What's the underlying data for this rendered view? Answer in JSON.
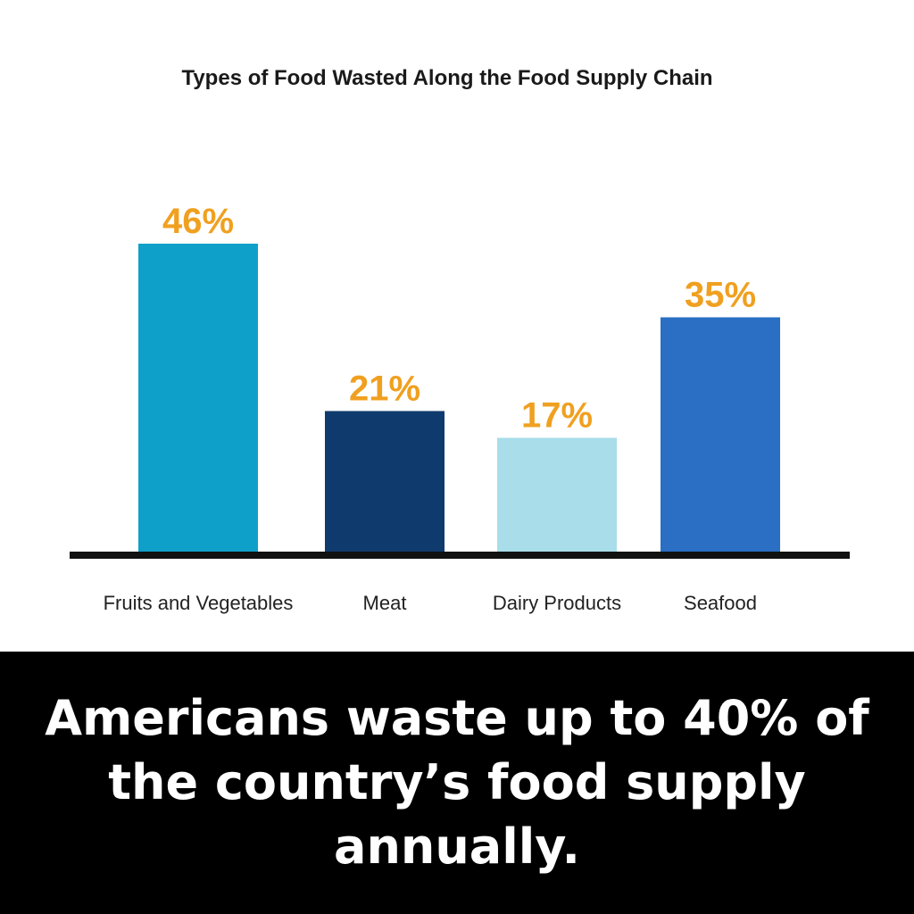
{
  "chart_data": {
    "type": "bar",
    "title": "Types of Food Wasted Along the Food Supply Chain",
    "categories": [
      "Fruits and Vegetables",
      "Meat",
      "Dairy Products",
      "Seafood"
    ],
    "values": [
      46,
      21,
      17,
      35
    ],
    "value_labels": [
      "46%",
      "21%",
      "17%",
      "35%"
    ],
    "bar_colors": [
      "#0ea0c9",
      "#0f3a6e",
      "#a8dde9",
      "#2a6fc4"
    ],
    "value_label_color": "#f0a020",
    "baseline_color": "#111111",
    "ylim": [
      0,
      46
    ],
    "grid": false,
    "legend": "none"
  },
  "caption": {
    "text": "Americans waste up to 40% of the country’s food supply annually.",
    "text_color": "#ffffff",
    "background_color": "#000000"
  }
}
